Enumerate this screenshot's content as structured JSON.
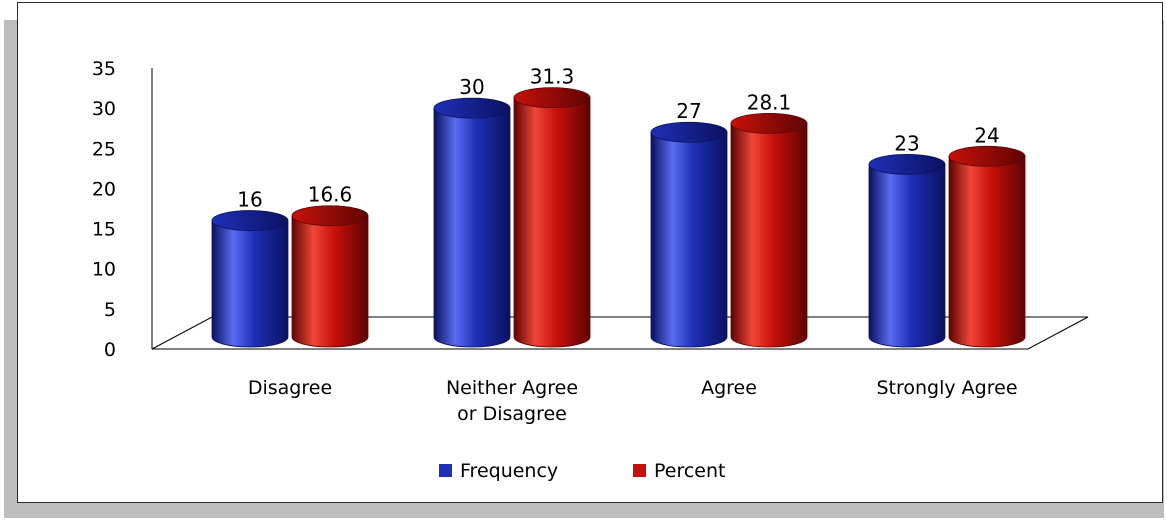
{
  "chart_data": {
    "type": "bar",
    "categories": [
      "Disagree",
      "Neither Agree or Disagree",
      "Agree",
      "Strongly Agree"
    ],
    "category_lines": [
      [
        "Disagree"
      ],
      [
        "Neither Agree",
        "or Disagree"
      ],
      [
        "Agree"
      ],
      [
        "Strongly Agree"
      ]
    ],
    "series": [
      {
        "name": "Frequency",
        "values": [
          16,
          30,
          27,
          23
        ],
        "value_labels": [
          "16",
          "30",
          "27",
          "23"
        ],
        "color": "#1f2fb8",
        "color_light": "#5a6cf0",
        "color_dark": "#0a1160"
      },
      {
        "name": "Percent",
        "values": [
          16.6,
          31.3,
          28.1,
          24
        ],
        "value_labels": [
          "16.6",
          "31.3",
          "28.1",
          "24"
        ],
        "color": "#c8100a",
        "color_light": "#f04638",
        "color_dark": "#5e0403"
      }
    ],
    "ylim": [
      0,
      35
    ],
    "yticks": [
      "0",
      "5",
      "10",
      "15",
      "20",
      "25",
      "30",
      "35"
    ],
    "xlabel": "",
    "ylabel": "",
    "title": "",
    "legend_position": "bottom",
    "grid": false,
    "style": "3d-cylinder"
  }
}
